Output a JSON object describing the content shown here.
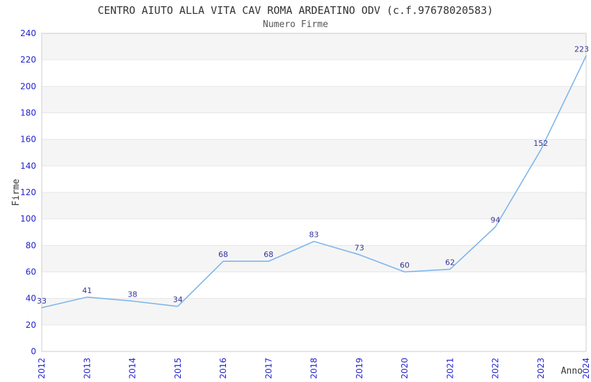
{
  "chart_data": {
    "type": "line",
    "title": "CENTRO AIUTO ALLA VITA CAV ROMA ARDEATINO ODV (c.f.97678020583)",
    "subtitle": "Numero Firme",
    "xlabel": "Anno",
    "ylabel": "Firme",
    "categories": [
      "2012",
      "2013",
      "2014",
      "2015",
      "2016",
      "2017",
      "2018",
      "2019",
      "2020",
      "2021",
      "2022",
      "2023",
      "2024"
    ],
    "values": [
      33,
      41,
      38,
      34,
      68,
      68,
      83,
      73,
      60,
      62,
      94,
      152,
      223
    ],
    "ylim": [
      0,
      240
    ],
    "ytick_step": 20,
    "yticks": [
      "0",
      "20",
      "40",
      "60",
      "80",
      "100",
      "120",
      "140",
      "160",
      "180",
      "200",
      "220",
      "240"
    ],
    "layout_hints": {
      "legend": "none",
      "grid": "horizontal gridlines with alternating shaded bands",
      "x_tick_rotation": -90,
      "data_labels": "shown above each point"
    },
    "colors": {
      "line": "#7cb5ec",
      "data_label": "#333399",
      "tick": "#2222cc",
      "band": "#f5f5f5",
      "grid": "#e6e6e6",
      "border": "#cccccc",
      "title": "#333333",
      "subtitle": "#555555",
      "axis_title": "#333333"
    }
  }
}
